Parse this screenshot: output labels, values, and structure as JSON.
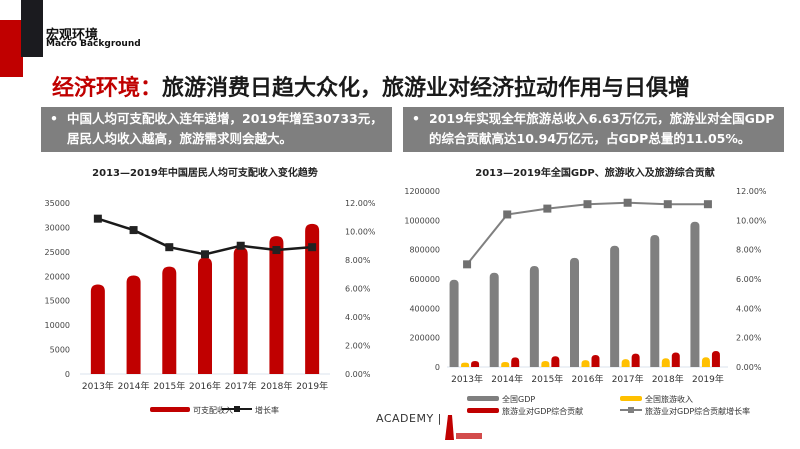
{
  "section": {
    "title_cn": "宏观环境",
    "title_en": "Macro Background"
  },
  "headline": {
    "highlight": "经济环境：",
    "rest": "旅游消费日趋大众化，旅游业对经济拉动作用与日俱增"
  },
  "bullets": [
    {
      "text": "中国人均可支配收入连年递增，2019年增至30733元，居民人均收入越高，旅游需求则会越大。"
    },
    {
      "text": "2019年实现全年旅游总收入6.63万亿元，旅游业对全国GDP的综合贡献高达10.94万亿元，占GDP总量的11.05%。"
    }
  ],
  "footer": {
    "brand": "ACADEMY |"
  },
  "chart_data": [
    {
      "type": "bar",
      "title": "2013—2019年中国居民人均可支配收入变化趋势",
      "categories": [
        "2013年",
        "2014年",
        "2015年",
        "2016年",
        "2017年",
        "2018年",
        "2019年"
      ],
      "ylim": [
        0,
        35000
      ],
      "yticks": [
        "0",
        "5000",
        "10000",
        "15000",
        "20000",
        "25000",
        "30000",
        "35000"
      ],
      "y2lim": [
        0,
        12
      ],
      "y2ticks": [
        "0.00%",
        "2.00%",
        "4.00%",
        "6.00%",
        "8.00%",
        "10.00%",
        "12.00%"
      ],
      "series": [
        {
          "name": "可支配收入",
          "kind": "bar",
          "axis": "left",
          "color": "#c00000",
          "values": [
            18311,
            20167,
            21966,
            23821,
            25974,
            28228,
            30733
          ]
        },
        {
          "name": "增长率",
          "kind": "line",
          "axis": "right",
          "color": "#1a1a1a",
          "values": [
            10.9,
            10.1,
            8.9,
            8.4,
            9.0,
            8.7,
            8.9
          ]
        }
      ],
      "legend": "bottom"
    },
    {
      "type": "bar",
      "title": "2013—2019年全国GDP、旅游收入及旅游综合贡献",
      "categories": [
        "2013年",
        "2014年",
        "2015年",
        "2016年",
        "2017年",
        "2018年",
        "2019年"
      ],
      "ylim": [
        0,
        1200000
      ],
      "yticks": [
        "0",
        "200000",
        "400000",
        "600000",
        "800000",
        "1000000",
        "1200000"
      ],
      "y2lim": [
        0,
        12
      ],
      "y2ticks": [
        "0.00%",
        "2.00%",
        "4.00%",
        "6.00%",
        "8.00%",
        "10.00%",
        "12.00%"
      ],
      "series": [
        {
          "name": "全国GDP",
          "kind": "bar",
          "axis": "left",
          "color": "#7f7f7f",
          "values": [
            595000,
            643000,
            689000,
            744000,
            827000,
            900000,
            990000
          ]
        },
        {
          "name": "全国旅游收入",
          "kind": "bar",
          "axis": "left",
          "color": "#ffc000",
          "values": [
            29500,
            33800,
            41300,
            46900,
            54000,
            59700,
            66300
          ]
        },
        {
          "name": "旅游业对GDP综合贡献",
          "kind": "bar",
          "axis": "left",
          "color": "#c00000",
          "values": [
            41000,
            66000,
            73000,
            82000,
            91000,
            99000,
            109400
          ]
        },
        {
          "name": "旅游业对GDP综合贡献增长率",
          "kind": "line",
          "axis": "right",
          "color": "#808080",
          "values": [
            7.0,
            10.4,
            10.8,
            11.1,
            11.2,
            11.1,
            11.1
          ]
        }
      ],
      "legend": "bottom"
    }
  ]
}
